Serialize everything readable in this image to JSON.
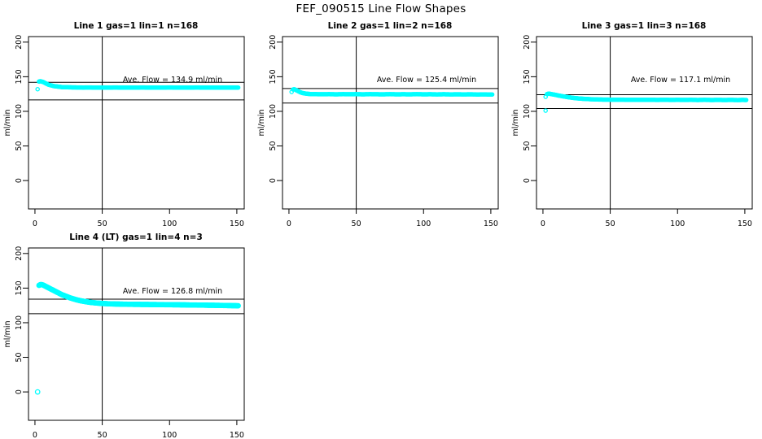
{
  "page": {
    "title": "FEF_090515  Line Flow Shapes",
    "background": "#FFFFFF"
  },
  "style": {
    "marker_color": "#00FFFF",
    "axis_color": "#000000"
  },
  "chart_data": [
    {
      "id": "line1",
      "type": "scatter",
      "title": "Line 1 gas=1 lin=1 n=168",
      "annotation": "Ave. Flow =  134.9  ml/min",
      "ave_flow_ml_min": 134.9,
      "ylabel": "ml/min",
      "x_ticks": [
        0,
        50,
        100,
        150
      ],
      "y_ticks": [
        0,
        50,
        100,
        150,
        200
      ],
      "xlim": [
        -4.8,
        155.5
      ],
      "ylim": [
        -41,
        208
      ],
      "grid": false,
      "vline_x": 50,
      "hlines": [
        142,
        116.5
      ],
      "marker": {
        "shape": "open-circle",
        "color": "#00FFFF",
        "radius": 2.1
      },
      "extra_points": [
        [
          2,
          132
        ]
      ],
      "points": [
        [
          3,
          143
        ],
        [
          4,
          143.5
        ],
        [
          5,
          143
        ],
        [
          6,
          142.5
        ],
        [
          7,
          141.5
        ],
        [
          8,
          140.5
        ],
        [
          9,
          139.5
        ],
        [
          10,
          138.5
        ],
        [
          12,
          137.5
        ],
        [
          14,
          136.5
        ],
        [
          16,
          136
        ],
        [
          18,
          135.5
        ],
        [
          20,
          135
        ],
        [
          24,
          134.8
        ],
        [
          28,
          134.6
        ],
        [
          32,
          134.5
        ],
        [
          36,
          134.4
        ],
        [
          40,
          134.5
        ],
        [
          45,
          134.3
        ],
        [
          50,
          134.4
        ],
        [
          55,
          134.3
        ],
        [
          60,
          134.5
        ],
        [
          65,
          134.2
        ],
        [
          70,
          134.4
        ],
        [
          75,
          134.3
        ],
        [
          80,
          134.5
        ],
        [
          85,
          134.2
        ],
        [
          90,
          134.4
        ],
        [
          95,
          134.3
        ],
        [
          100,
          134.5
        ],
        [
          105,
          134.3
        ],
        [
          110,
          134.4
        ],
        [
          115,
          134.2
        ],
        [
          120,
          134.5
        ],
        [
          125,
          134.3
        ],
        [
          130,
          134.4
        ],
        [
          135,
          134.2
        ],
        [
          140,
          134.4
        ],
        [
          145,
          134.3
        ],
        [
          148,
          134.4
        ],
        [
          151,
          134.3
        ]
      ]
    },
    {
      "id": "line2",
      "type": "scatter",
      "title": "Line 2 gas=1 lin=2 n=168",
      "annotation": "Ave. Flow =  125.4  ml/min",
      "ave_flow_ml_min": 125.4,
      "ylabel": "ml/min",
      "x_ticks": [
        0,
        50,
        100,
        150
      ],
      "y_ticks": [
        0,
        50,
        100,
        150,
        200
      ],
      "xlim": [
        -4.8,
        155.5
      ],
      "ylim": [
        -41,
        208
      ],
      "grid": false,
      "vline_x": 50,
      "hlines": [
        133,
        112
      ],
      "marker": {
        "shape": "open-circle",
        "color": "#00FFFF",
        "radius": 2.1
      },
      "extra_points": [
        [
          2,
          128
        ]
      ],
      "points": [
        [
          3,
          131.5
        ],
        [
          4,
          132
        ],
        [
          5,
          131
        ],
        [
          6,
          130
        ],
        [
          7,
          129
        ],
        [
          8,
          128
        ],
        [
          9,
          127.2
        ],
        [
          10,
          126.5
        ],
        [
          12,
          125.8
        ],
        [
          14,
          125.3
        ],
        [
          16,
          125
        ],
        [
          20,
          124.8
        ],
        [
          25,
          124.7
        ],
        [
          30,
          124.8
        ],
        [
          35,
          124.6
        ],
        [
          40,
          124.8
        ],
        [
          45,
          124.7
        ],
        [
          50,
          124.8
        ],
        [
          55,
          124.6
        ],
        [
          60,
          124.8
        ],
        [
          65,
          124.7
        ],
        [
          70,
          124.6
        ],
        [
          75,
          124.8
        ],
        [
          80,
          124.6
        ],
        [
          85,
          124.7
        ],
        [
          90,
          124.6
        ],
        [
          95,
          124.8
        ],
        [
          100,
          124.6
        ],
        [
          105,
          124.7
        ],
        [
          110,
          124.5
        ],
        [
          115,
          124.7
        ],
        [
          120,
          124.5
        ],
        [
          125,
          124.6
        ],
        [
          130,
          124.5
        ],
        [
          135,
          124.6
        ],
        [
          140,
          124.4
        ],
        [
          145,
          124.5
        ],
        [
          148,
          124.4
        ],
        [
          151,
          124.4
        ]
      ]
    },
    {
      "id": "line3",
      "type": "scatter",
      "title": "Line 3 gas=1 lin=3 n=168",
      "annotation": "Ave. Flow =  117.1  ml/min",
      "ave_flow_ml_min": 117.1,
      "ylabel": "ml/min",
      "x_ticks": [
        0,
        50,
        100,
        150
      ],
      "y_ticks": [
        0,
        50,
        100,
        150,
        200
      ],
      "xlim": [
        -4.8,
        155.5
      ],
      "ylim": [
        -41,
        208
      ],
      "grid": false,
      "vline_x": 50,
      "hlines": [
        124,
        104
      ],
      "marker": {
        "shape": "open-circle",
        "color": "#00FFFF",
        "radius": 2.1
      },
      "extra_points": [
        [
          2,
          121
        ],
        [
          2,
          101
        ]
      ],
      "points": [
        [
          3,
          125
        ],
        [
          4,
          125.5
        ],
        [
          5,
          125.5
        ],
        [
          6,
          125
        ],
        [
          8,
          124.3
        ],
        [
          10,
          123.5
        ],
        [
          12,
          122.7
        ],
        [
          14,
          122
        ],
        [
          16,
          121.3
        ],
        [
          18,
          120.7
        ],
        [
          20,
          120.1
        ],
        [
          22,
          119.6
        ],
        [
          24,
          119.1
        ],
        [
          26,
          118.7
        ],
        [
          28,
          118.4
        ],
        [
          30,
          118.1
        ],
        [
          33,
          117.8
        ],
        [
          36,
          117.5
        ],
        [
          40,
          117.2
        ],
        [
          45,
          117
        ],
        [
          50,
          116.9
        ],
        [
          55,
          116.8
        ],
        [
          60,
          116.8
        ],
        [
          65,
          116.7
        ],
        [
          70,
          116.7
        ],
        [
          75,
          116.6
        ],
        [
          80,
          116.7
        ],
        [
          85,
          116.5
        ],
        [
          90,
          116.7
        ],
        [
          95,
          116.5
        ],
        [
          100,
          116.6
        ],
        [
          105,
          116.5
        ],
        [
          110,
          116.6
        ],
        [
          115,
          116.4
        ],
        [
          120,
          116.6
        ],
        [
          125,
          116.4
        ],
        [
          130,
          116.5
        ],
        [
          135,
          116.4
        ],
        [
          140,
          116.5
        ],
        [
          145,
          116.3
        ],
        [
          148,
          116.5
        ],
        [
          151,
          116.4
        ]
      ]
    },
    {
      "id": "line4",
      "type": "scatter",
      "title": "Line 4 (LT) gas=1 lin=4 n=3",
      "annotation": "Ave. Flow =  126.8  ml/min",
      "ave_flow_ml_min": 126.8,
      "ylabel": "ml/min",
      "x_ticks": [
        0,
        50,
        100,
        150
      ],
      "y_ticks": [
        0,
        50,
        100,
        150,
        200
      ],
      "xlim": [
        -4.8,
        155.5
      ],
      "ylim": [
        -41,
        208
      ],
      "grid": false,
      "vline_x": 50,
      "hlines": [
        134,
        113
      ],
      "marker": {
        "shape": "open-circle",
        "color": "#00FFFF",
        "radius": 2.7
      },
      "extra_points": [
        [
          2,
          0
        ]
      ],
      "points": [
        [
          3,
          154
        ],
        [
          4,
          155
        ],
        [
          5,
          155
        ],
        [
          6,
          154.5
        ],
        [
          7,
          153.5
        ],
        [
          8,
          152.5
        ],
        [
          9,
          151.5
        ],
        [
          10,
          150.5
        ],
        [
          12,
          148.5
        ],
        [
          14,
          146.5
        ],
        [
          16,
          144.5
        ],
        [
          18,
          142.5
        ],
        [
          20,
          140.5
        ],
        [
          22,
          139
        ],
        [
          24,
          137.5
        ],
        [
          26,
          136
        ],
        [
          28,
          134.8
        ],
        [
          30,
          133.6
        ],
        [
          32,
          132.6
        ],
        [
          34,
          131.7
        ],
        [
          36,
          131
        ],
        [
          38,
          130.3
        ],
        [
          40,
          129.7
        ],
        [
          42,
          129.2
        ],
        [
          45,
          128.6
        ],
        [
          48,
          128.1
        ],
        [
          50,
          127.8
        ],
        [
          55,
          127.3
        ],
        [
          60,
          127
        ],
        [
          65,
          126.8
        ],
        [
          70,
          126.6
        ],
        [
          75,
          126.5
        ],
        [
          80,
          126.4
        ],
        [
          85,
          126.3
        ],
        [
          90,
          126.2
        ],
        [
          95,
          126.1
        ],
        [
          100,
          126
        ],
        [
          105,
          125.9
        ],
        [
          110,
          125.8
        ],
        [
          115,
          125.6
        ],
        [
          120,
          125.5
        ],
        [
          125,
          125.4
        ],
        [
          130,
          125.2
        ],
        [
          135,
          125.1
        ],
        [
          140,
          124.9
        ],
        [
          145,
          124.7
        ],
        [
          148,
          124.6
        ],
        [
          151,
          124.5
        ]
      ]
    }
  ]
}
